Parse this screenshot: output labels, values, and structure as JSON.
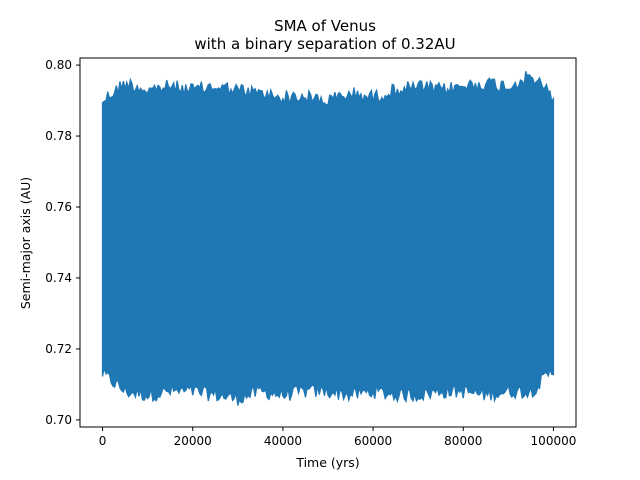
{
  "chart_data": {
    "type": "line",
    "title": "SMA of Venus",
    "subtitle": "with a binary separation of 0.32AU",
    "xlabel": "Time (yrs)",
    "ylabel": "Semi-major axis (AU)",
    "xlim": [
      -5000,
      105000
    ],
    "ylim": [
      0.698,
      0.802
    ],
    "x_ticks": [
      0,
      20000,
      40000,
      60000,
      80000,
      100000
    ],
    "x_tick_labels": [
      "0",
      "20000",
      "40000",
      "60000",
      "80000",
      "100000"
    ],
    "y_ticks": [
      0.7,
      0.72,
      0.74,
      0.76,
      0.78,
      0.8
    ],
    "y_tick_labels": [
      "0.70",
      "0.72",
      "0.74",
      "0.76",
      "0.78",
      "0.80"
    ],
    "grid": false,
    "series": [
      {
        "color": "#1f77b4",
        "x_range": [
          0,
          100000
        ],
        "envelope": {
          "x": [
            0,
            5000,
            10000,
            15000,
            20000,
            25000,
            30000,
            35000,
            40000,
            45000,
            50000,
            55000,
            60000,
            65000,
            70000,
            75000,
            80000,
            85000,
            90000,
            95000,
            100000
          ],
          "upper": [
            0.792,
            0.797,
            0.795,
            0.796,
            0.795,
            0.796,
            0.795,
            0.794,
            0.793,
            0.793,
            0.792,
            0.794,
            0.793,
            0.795,
            0.796,
            0.795,
            0.796,
            0.797,
            0.796,
            0.799,
            0.793
          ],
          "lower": [
            0.711,
            0.706,
            0.705,
            0.706,
            0.706,
            0.705,
            0.704,
            0.706,
            0.705,
            0.706,
            0.706,
            0.705,
            0.706,
            0.705,
            0.705,
            0.706,
            0.706,
            0.705,
            0.706,
            0.706,
            0.712
          ]
        }
      }
    ]
  }
}
